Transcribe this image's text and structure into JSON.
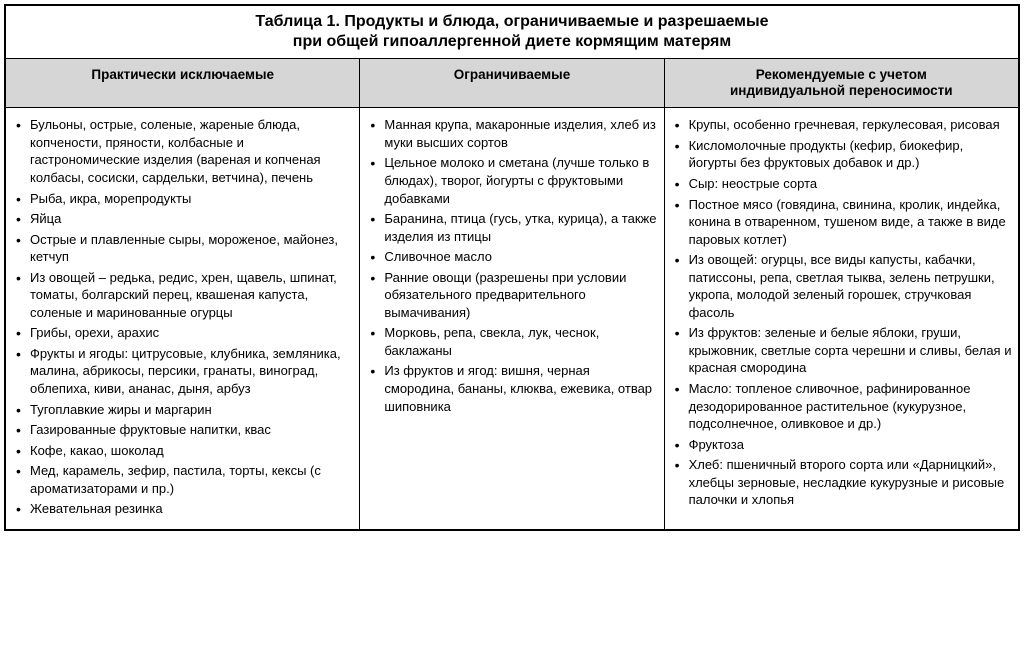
{
  "table": {
    "title_line1": "Таблица 1. Продукты и блюда, ограничиваемые и разрешаемые",
    "title_line2": "при общей гипоаллергенной диете кормящим матерям",
    "headers": {
      "col_a": "Практически исключаемые",
      "col_b": "Ограничиваемые",
      "col_c_line1": "Рекомендуемые с учетом",
      "col_c_line2": "индивидуальной переносимости"
    },
    "columns": {
      "excluded": [
        "Бульоны, острые, соленые, жареные блюда, копчености, пряности, колбасные и гастрономические изделия (вареная и копченая колбасы, сосиски, сардельки, ветчина), печень",
        "Рыба, икра, морепродукты",
        "Яйца",
        "Острые и плавленные сыры, мороженое, майонез, кетчуп",
        "Из овощей – редька, редис, хрен, щавель, шпинат, томаты, болгарский перец, квашеная капуста, соленые и маринованные огурцы",
        "Грибы, орехи, арахис",
        "Фрукты и ягоды: цитрусовые, клубника, земляника, малина, абрикосы, персики, гранаты, виноград, облепиха, киви, ананас, дыня, арбуз",
        "Тугоплавкие жиры и маргарин",
        "Газированные фруктовые напитки, квас",
        "Кофе, какао, шоколад",
        "Мед, карамель, зефир, пастила, торты, кексы (с ароматизаторами и пр.)",
        "Жевательная резинка"
      ],
      "limited": [
        "Манная крупа, макаронные изделия, хлеб из муки высших сортов",
        "Цельное молоко и сметана (лучше только в блюдах), творог, йогурты с фруктовыми добавками",
        "Баранина, птица (гусь, утка, курица), а также изделия из птицы",
        "Сливочное масло",
        "Ранние овощи (разрешены при условии обязательного предварительного вымачивания)",
        "Морковь, репа, свекла, лук, чеснок, баклажаны",
        "Из фруктов и ягод: вишня, черная смородина, бананы, клюква, ежевика, отвар шиповника"
      ],
      "recommended": [
        "Крупы, особенно гречневая, геркулесовая, рисовая",
        "Кисломолочные продукты (кефир, биокефир, йогурты без фруктовых добавок и др.)",
        "Сыр: неострые сорта",
        "Постное мясо (говядина, свинина, кролик, индейка, конина в отваренном, тушеном виде, а также в виде паровых котлет)",
        "Из овощей: огурцы, все виды капусты, кабачки, патиссоны, репа, светлая тыква, зелень петрушки, укропа, молодой зеленый горошек, стручковая фасоль",
        "Из фруктов: зеленые и белые яблоки, груши, крыжовник, светлые сорта черешни и сливы, белая и красная смородина",
        "Масло: топленое сливочное, рафинированное дезодорированное растительное (кукурузное, подсолнечное, оливковое и др.)",
        "Фруктоза",
        "Хлеб: пшеничный второго сорта или «Дарницкий», хлебцы зерновые, несладкие кукурузные и рисовые палочки и хлопья"
      ]
    }
  }
}
